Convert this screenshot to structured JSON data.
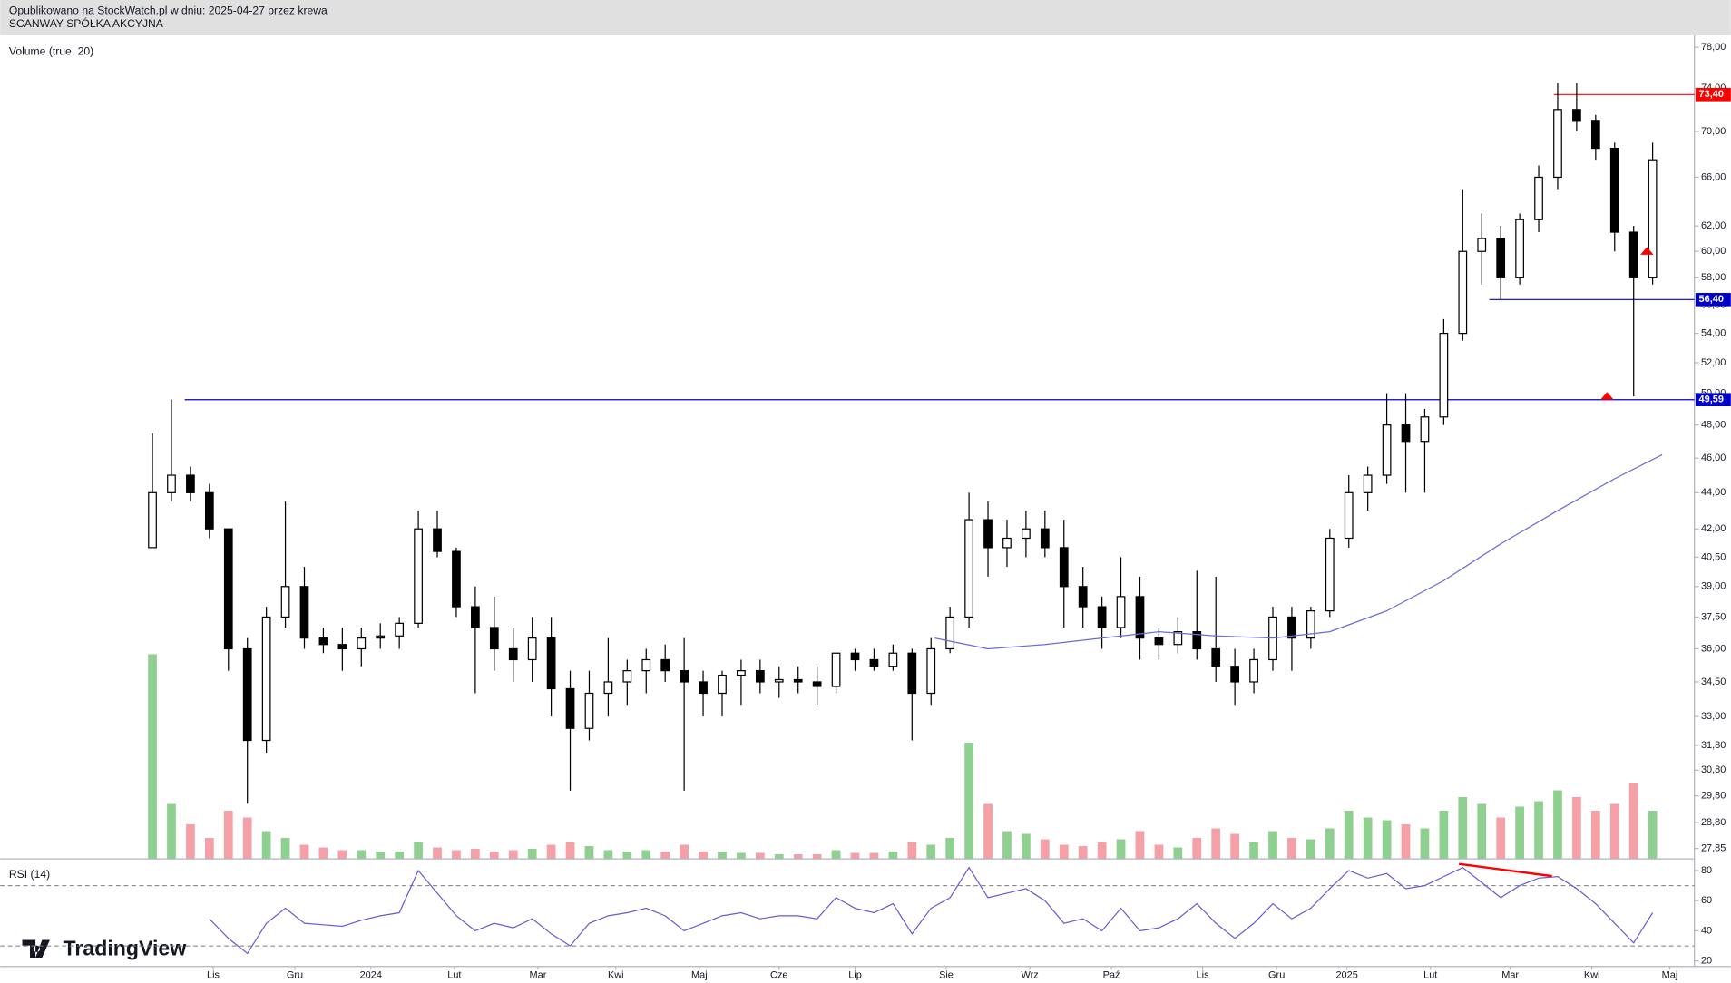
{
  "header": {
    "line1": "Opublikowano na StockWatch.pl w dniu: 2025-04-27 przez krewa",
    "line2": "SCANWAY SPÓŁKA AKCYJNA"
  },
  "logo": "TradingView",
  "chart_data": {
    "type": "candlestick",
    "log_scale": true,
    "xlim": [
      -8.02,
      81.2
    ],
    "xticks": [
      {
        "value": 3.2,
        "label": "Lis"
      },
      {
        "value": 7.5,
        "label": "Gru"
      },
      {
        "value": 11.5,
        "label": "2024"
      },
      {
        "value": 15.9,
        "label": "Lut"
      },
      {
        "value": 20.3,
        "label": "Mar"
      },
      {
        "value": 24.4,
        "label": "Kwi"
      },
      {
        "value": 28.8,
        "label": "Maj"
      },
      {
        "value": 33.0,
        "label": "Cze"
      },
      {
        "value": 37.0,
        "label": "Lip"
      },
      {
        "value": 41.8,
        "label": "Sie"
      },
      {
        "value": 46.2,
        "label": "Wrz"
      },
      {
        "value": 50.5,
        "label": "Paź"
      },
      {
        "value": 55.3,
        "label": "Lis"
      },
      {
        "value": 59.2,
        "label": "Gru"
      },
      {
        "value": 62.9,
        "label": "2025"
      },
      {
        "value": 67.3,
        "label": "Lut"
      },
      {
        "value": 71.5,
        "label": "Mar"
      },
      {
        "value": 75.8,
        "label": "Kwi"
      },
      {
        "value": 79.9,
        "label": "Maj"
      }
    ],
    "ylim": [
      27.5,
      79.1
    ],
    "yticks": [
      {
        "value": 27.85,
        "label": "27,85"
      },
      {
        "value": 28.8,
        "label": "28,80"
      },
      {
        "value": 29.8,
        "label": "29,80"
      },
      {
        "value": 30.8,
        "label": "30,80"
      },
      {
        "value": 31.8,
        "label": "31,80"
      },
      {
        "value": 33,
        "label": "33,00"
      },
      {
        "value": 34.5,
        "label": "34,50"
      },
      {
        "value": 36,
        "label": "36,00"
      },
      {
        "value": 37.5,
        "label": "37,50"
      },
      {
        "value": 39,
        "label": "39,00"
      },
      {
        "value": 40.5,
        "label": "40,50"
      },
      {
        "value": 42,
        "label": "42,00"
      },
      {
        "value": 44,
        "label": "44,00"
      },
      {
        "value": 46,
        "label": "46,00"
      },
      {
        "value": 48,
        "label": "48,00"
      },
      {
        "value": 50,
        "label": "50,00"
      },
      {
        "value": 52,
        "label": "52,00"
      },
      {
        "value": 54,
        "label": "54,00"
      },
      {
        "value": 56,
        "label": "56,00"
      },
      {
        "value": 58,
        "label": "58,00"
      },
      {
        "value": 60,
        "label": "60,00"
      },
      {
        "value": 62,
        "label": "62,00"
      },
      {
        "value": 66,
        "label": "66,00"
      },
      {
        "value": 70,
        "label": "70,00"
      },
      {
        "value": 74,
        "label": "74,00"
      },
      {
        "value": 78,
        "label": "78,00"
      }
    ],
    "up_color": "#ffffff",
    "down_color": "#000000",
    "open": [
      41,
      44,
      45,
      44,
      42,
      36,
      32,
      37.5,
      39,
      36.5,
      36.2,
      36,
      36.5,
      36.6,
      37.2,
      42,
      40.8,
      38,
      37,
      36,
      35.5,
      36.5,
      34.2,
      32.5,
      34,
      34.5,
      35,
      35.5,
      35,
      34.5,
      34,
      34.8,
      35,
      34.5,
      34.6,
      34.5,
      34.3,
      35.8,
      35.5,
      35.2,
      35.8,
      34,
      36,
      37.5,
      42.5,
      41,
      41.5,
      42,
      41,
      39,
      38,
      37,
      38.5,
      36.5,
      36.2,
      36.8,
      36,
      35.2,
      34.5,
      35.5,
      37.5,
      36.5,
      37.8,
      41.5,
      44,
      45,
      48,
      47,
      48.5,
      54,
      60,
      61,
      58,
      62.5,
      66,
      72,
      71,
      68.5,
      61.5,
      58
    ],
    "high": [
      47.5,
      49.6,
      45.5,
      44.5,
      42,
      36.5,
      38,
      43.5,
      40,
      37,
      37,
      37,
      37.2,
      37.5,
      43,
      43,
      41,
      39,
      38.5,
      37,
      37.5,
      37.5,
      35,
      35,
      36.5,
      35.5,
      36,
      36.2,
      36.5,
      35,
      35,
      35.5,
      35.5,
      35.2,
      35.2,
      35.2,
      35.8,
      36,
      36,
      36.2,
      36,
      36.5,
      38,
      44,
      43.5,
      42.5,
      43,
      43,
      42.5,
      40,
      38.5,
      40.5,
      39.5,
      37,
      37.5,
      39.8,
      39.5,
      36,
      36,
      38,
      38,
      38,
      42,
      45,
      45.5,
      50,
      50,
      49,
      55,
      65,
      63,
      62,
      63,
      67,
      74.5,
      74.5,
      71.5,
      69,
      62,
      69
    ],
    "low": [
      41,
      43.5,
      43.5,
      41.5,
      35,
      29.5,
      31.5,
      37,
      36,
      35.8,
      35,
      35.2,
      36,
      36,
      37,
      40.5,
      37.5,
      34,
      35,
      34.5,
      34.5,
      33,
      30,
      32,
      33,
      33.5,
      34,
      34.5,
      30,
      33,
      33,
      33.5,
      34,
      33.8,
      34,
      33.5,
      34,
      35,
      35,
      35,
      32,
      33.5,
      35.8,
      37,
      39.5,
      40,
      40.5,
      40.5,
      37,
      37,
      36,
      36.5,
      35.5,
      35.5,
      35.8,
      35.5,
      34.5,
      33.5,
      34,
      35,
      35,
      36,
      37.5,
      41,
      43,
      44.5,
      44,
      44,
      48,
      53.5,
      57.5,
      56.4,
      57.5,
      61.5,
      65,
      70,
      67.5,
      60,
      49.8,
      57.5
    ],
    "close": [
      44,
      45,
      44,
      42,
      36,
      32,
      37.5,
      39,
      36.5,
      36.2,
      36,
      36.5,
      36.6,
      37.2,
      42,
      40.8,
      38,
      37,
      36,
      35.5,
      36.5,
      34.2,
      32.5,
      34,
      34.5,
      35,
      35.5,
      35,
      34.5,
      34,
      34.8,
      35,
      34.5,
      34.6,
      34.5,
      34.3,
      35.8,
      35.5,
      35.2,
      35.8,
      34,
      36,
      37.5,
      42.5,
      41,
      41.5,
      42,
      41,
      39,
      38,
      37,
      38.5,
      36.5,
      36.2,
      36.8,
      36,
      35.2,
      34.5,
      35.5,
      37.5,
      36.5,
      37.8,
      41.5,
      44,
      45,
      48,
      47,
      48.5,
      54,
      60,
      61,
      58,
      62.5,
      66,
      72,
      71,
      68.5,
      61.5,
      58,
      67.5
    ],
    "ma": {
      "color": "#6a6ad8",
      "x": [
        41.2,
        44,
        47,
        50,
        53,
        56,
        59,
        62,
        65,
        68,
        71,
        74,
        77,
        79.5
      ],
      "values": [
        36.5,
        36,
        36.2,
        36.5,
        36.8,
        36.6,
        36.5,
        36.8,
        37.8,
        39.3,
        41.2,
        43,
        44.8,
        46.2
      ]
    },
    "levels": [
      {
        "value": 73.4,
        "label": "73,40",
        "color": "#ff0000",
        "x": 73.8
      },
      {
        "value": 56.4,
        "label": "56,40",
        "color": "#0000cc",
        "x": 70.4
      },
      {
        "value": 49.59,
        "label": "49,59",
        "color": "#0000cc",
        "x": 1.7
      }
    ],
    "markers": [
      {
        "x": 76.6,
        "value": 49.8,
        "color": "#ff0000"
      },
      {
        "x": 78.7,
        "value": 60,
        "color": "#ff0000"
      }
    ],
    "volume_label": "Volume (true, 20)",
    "volume_colors": {
      "up": "#8fcf8f",
      "down": "#f4a0a6"
    },
    "volume": [
      150,
      40,
      25,
      15,
      35,
      30,
      20,
      15,
      10,
      8,
      6,
      6,
      5,
      5,
      12,
      8,
      6,
      7,
      5,
      6,
      7,
      10,
      12,
      9,
      6,
      5,
      6,
      5,
      10,
      5,
      5,
      4,
      4,
      3,
      3,
      3,
      6,
      4,
      4,
      5,
      12,
      10,
      15,
      85,
      40,
      20,
      18,
      14,
      10,
      9,
      12,
      14,
      20,
      10,
      8,
      15,
      22,
      18,
      12,
      20,
      15,
      14,
      22,
      35,
      30,
      28,
      25,
      22,
      35,
      45,
      40,
      30,
      38,
      42,
      50,
      45,
      35,
      40,
      55,
      35
    ],
    "rsi": {
      "title": "RSI (14)",
      "color": "#6a5acd",
      "ylim": [
        17.1,
        85.9
      ],
      "yticks": [
        20,
        40,
        60,
        80
      ],
      "levels": [
        70,
        30
      ],
      "values": [
        null,
        null,
        null,
        48,
        35,
        25,
        45,
        55,
        45,
        44,
        43,
        47,
        50,
        52,
        80,
        65,
        50,
        40,
        45,
        42,
        48,
        38,
        30,
        45,
        50,
        52,
        55,
        50,
        40,
        45,
        50,
        52,
        48,
        50,
        50,
        48,
        62,
        55,
        52,
        58,
        38,
        55,
        62,
        82,
        62,
        65,
        68,
        60,
        45,
        48,
        40,
        55,
        40,
        42,
        48,
        58,
        45,
        35,
        45,
        58,
        48,
        55,
        68,
        80,
        75,
        78,
        68,
        70,
        76,
        82,
        72,
        62,
        70,
        75,
        76,
        68,
        58,
        45,
        32,
        52
      ],
      "divergence": {
        "color": "#ff0000",
        "x": [
          68.8,
          73.7
        ],
        "values": [
          84.4,
          76.3
        ]
      }
    }
  }
}
